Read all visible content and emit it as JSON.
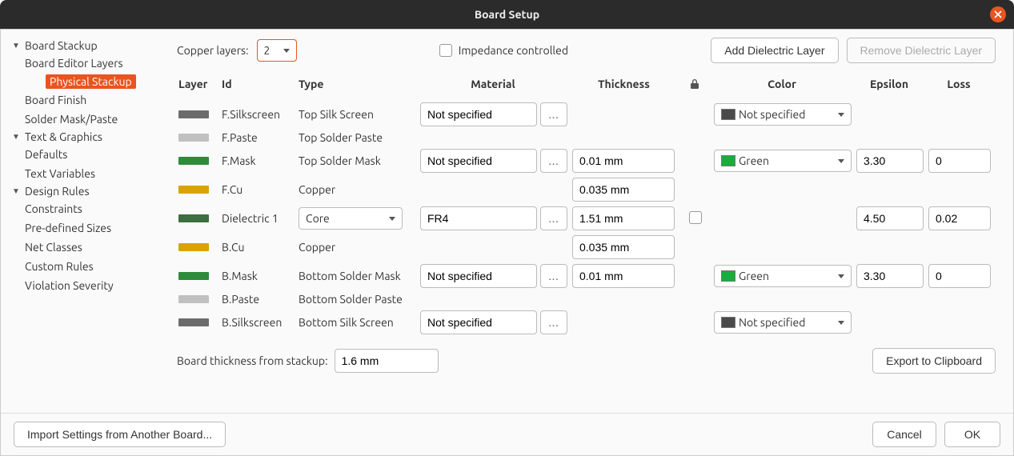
{
  "window": {
    "title": "Board Setup"
  },
  "sidebar": {
    "groups": [
      {
        "label": "Board Stackup",
        "items": [
          "Board Editor Layers",
          "Physical Stackup",
          "Board Finish",
          "Solder Mask/Paste"
        ],
        "selected_index": 1
      },
      {
        "label": "Text & Graphics",
        "items": [
          "Defaults",
          "Text Variables"
        ]
      },
      {
        "label": "Design Rules",
        "items": [
          "Constraints",
          "Pre-defined Sizes",
          "Net Classes",
          "Custom Rules",
          "Violation Severity"
        ]
      }
    ]
  },
  "topbar": {
    "copper_layers_label": "Copper layers:",
    "copper_layers_value": "2",
    "impedance_label": "Impedance controlled",
    "impedance_checked": false,
    "add_button": "Add Dielectric Layer",
    "remove_button": "Remove Dielectric Layer"
  },
  "columns": {
    "layer": "Layer",
    "id": "Id",
    "type": "Type",
    "material": "Material",
    "thickness": "Thickness",
    "color": "Color",
    "epsilon": "Epsilon",
    "loss": "Loss"
  },
  "rows": [
    {
      "swatch": "#6b6b6b",
      "id": "F.Silkscreen",
      "type": "Top Silk Screen",
      "material_text": "Not specified",
      "material_more": true,
      "color_chip": "#4a4a4a",
      "color_text": "Not specified"
    },
    {
      "swatch": "#c0c0c0",
      "id": "F.Paste",
      "type": "Top Solder Paste"
    },
    {
      "swatch": "#2e8b3b",
      "id": "F.Mask",
      "type": "Top Solder Mask",
      "material_text": "Not specified",
      "material_more": true,
      "thickness": "0.01 mm",
      "color_chip": "#1aad3b",
      "color_text": "Green",
      "epsilon": "3.30",
      "loss": "0"
    },
    {
      "swatch": "#d9a300",
      "id": "F.Cu",
      "type": "Copper",
      "thickness": "0.035 mm"
    },
    {
      "swatch": "#3d6e3f",
      "id": "Dielectric 1",
      "type_dropdown": "Core",
      "material_text": "FR4",
      "material_more": true,
      "thickness": "1.51 mm",
      "lock_checkbox": true,
      "epsilon": "4.50",
      "loss": "0.02"
    },
    {
      "swatch": "#d9a300",
      "id": "B.Cu",
      "type": "Copper",
      "thickness": "0.035 mm"
    },
    {
      "swatch": "#2e8b3b",
      "id": "B.Mask",
      "type": "Bottom Solder Mask",
      "material_text": "Not specified",
      "material_more": true,
      "thickness": "0.01 mm",
      "color_chip": "#1aad3b",
      "color_text": "Green",
      "epsilon": "3.30",
      "loss": "0"
    },
    {
      "swatch": "#c0c0c0",
      "id": "B.Paste",
      "type": "Bottom Solder Paste"
    },
    {
      "swatch": "#6b6b6b",
      "id": "B.Silkscreen",
      "type": "Bottom Silk Screen",
      "material_text": "Not specified",
      "material_more": true,
      "color_chip": "#4a4a4a",
      "color_text": "Not specified"
    }
  ],
  "bottom": {
    "thickness_label": "Board thickness from stackup:",
    "thickness_value": "1.6 mm",
    "export_button": "Export to Clipboard"
  },
  "footer": {
    "import_button": "Import Settings from Another Board...",
    "cancel": "Cancel",
    "ok": "OK"
  },
  "colors": {
    "accent": "#e95420"
  }
}
